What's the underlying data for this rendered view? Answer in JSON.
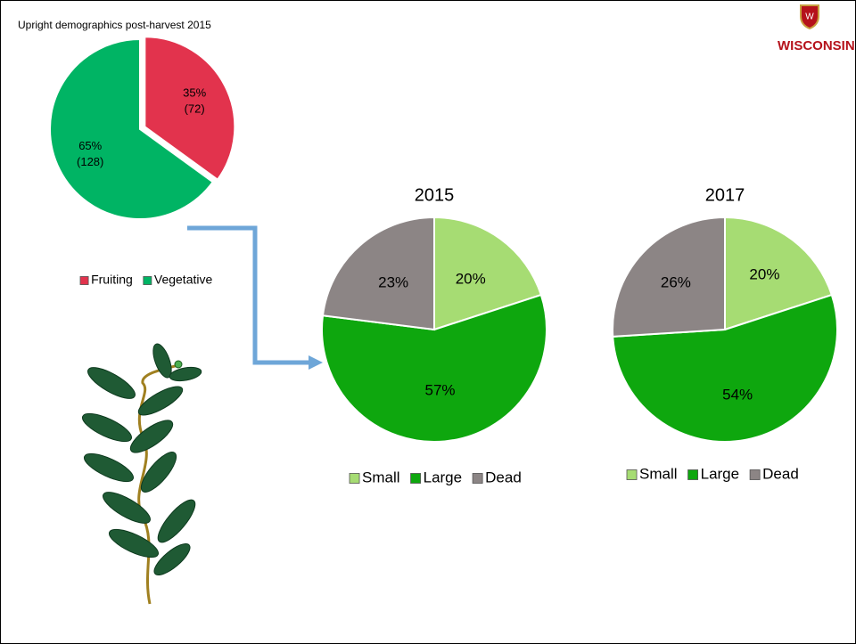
{
  "page_title": "Upright demographics post-harvest 2015",
  "logo": "WISCONSIN",
  "chart_data": [
    {
      "type": "pie",
      "categories": [
        "Fruiting",
        "Vegetative"
      ],
      "values": [
        35,
        65
      ],
      "value_labels": [
        "35%",
        "65%"
      ],
      "count_labels": [
        "(72)",
        "(128)"
      ],
      "colors": [
        "#e2334d",
        "#00b464"
      ]
    },
    {
      "type": "pie",
      "title": "2015",
      "categories": [
        "Small",
        "Large",
        "Dead"
      ],
      "values": [
        20,
        57,
        23
      ],
      "value_labels": [
        "20%",
        "57%",
        "23%"
      ],
      "colors": [
        "#a6dc73",
        "#0ea70e",
        "#8c8585"
      ]
    },
    {
      "type": "pie",
      "title": "2017",
      "categories": [
        "Small",
        "Large",
        "Dead"
      ],
      "values": [
        20,
        54,
        26
      ],
      "value_labels": [
        "20%",
        "54%",
        "26%"
      ],
      "colors": [
        "#a6dc73",
        "#0ea70e",
        "#8c8585"
      ]
    }
  ]
}
